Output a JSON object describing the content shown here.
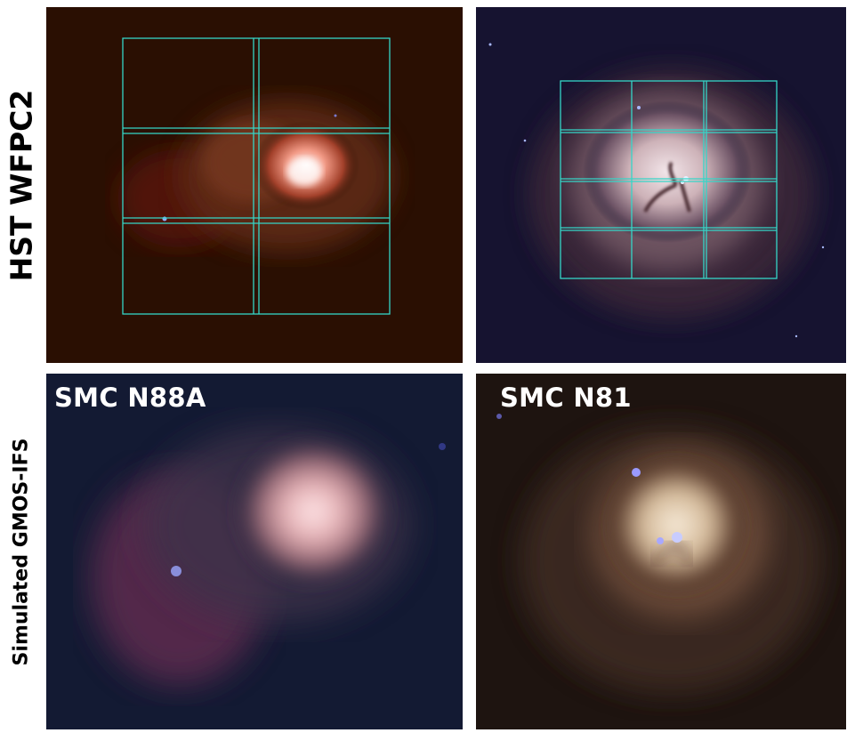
{
  "row_labels": {
    "top": "HST WFPC2",
    "bottom": "Simulated GMOS-IFS"
  },
  "panel_titles": {
    "left": "SMC N88A",
    "right": "SMC N81"
  },
  "colors": {
    "grid_line": "#35d6c8",
    "n88a_hst_background": "#2a0f02",
    "n81_hst_background": "#161330",
    "n88a_sim_background": "#131a33",
    "n81_sim_background": "#1e1410"
  }
}
